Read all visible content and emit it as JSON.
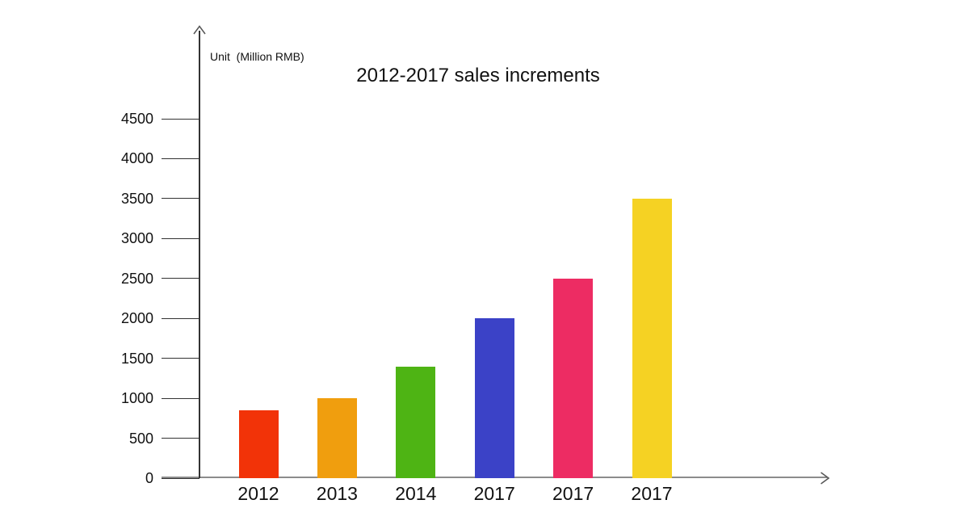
{
  "chart_data": {
    "type": "bar",
    "title": "2012-2017 sales increments",
    "unit_label": "Unit  (Million RMB)",
    "categories": [
      "2012",
      "2013",
      "2014",
      "2017",
      "2017",
      "2017"
    ],
    "values": [
      850,
      1000,
      1400,
      2000,
      2500,
      3500
    ],
    "bar_colors": [
      "#f23308",
      "#f09e0e",
      "#4eb414",
      "#3b42c7",
      "#ed2c63",
      "#f5d223"
    ],
    "y_ticks": [
      0,
      500,
      1000,
      1500,
      2000,
      2500,
      3000,
      3500,
      4000,
      4500
    ],
    "ylim": [
      0,
      4500
    ],
    "xlabel": "",
    "ylabel": "Unit  (Million RMB)",
    "grid": false,
    "legend_position": "none",
    "colors": {
      "axis": "#333333",
      "tick": "#333333",
      "baseline": "#8c8c8c",
      "arrow": "#555555",
      "text": "#111111",
      "background": "#ffffff"
    }
  }
}
